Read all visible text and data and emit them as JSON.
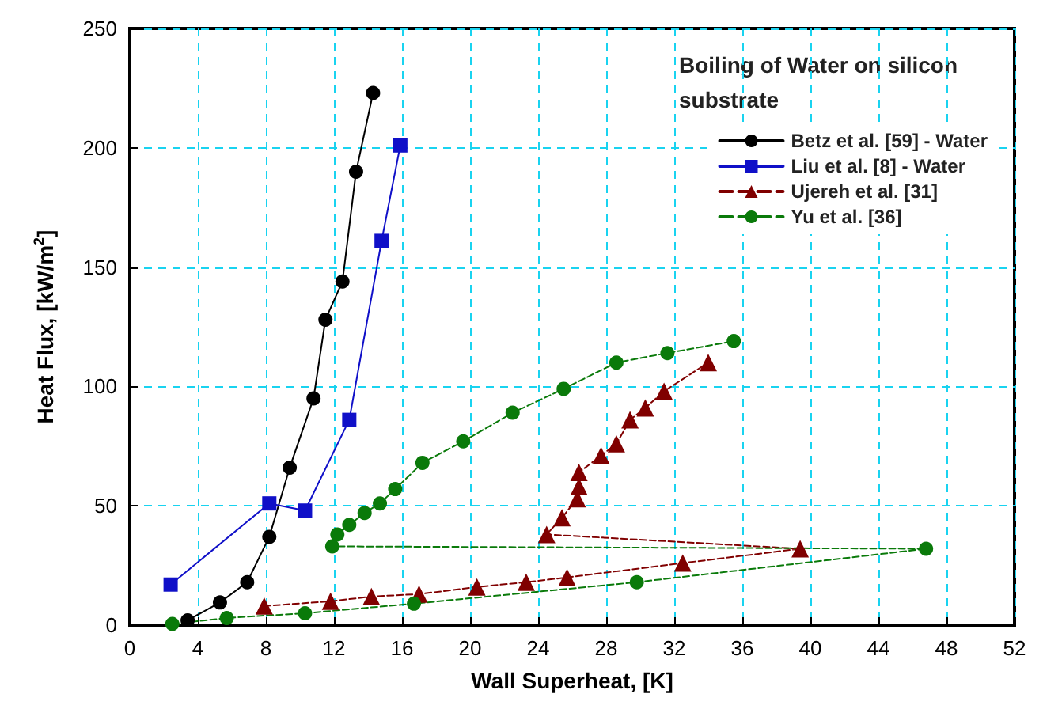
{
  "chart_data": {
    "type": "line",
    "xlabel": "Wall Superheat, [K]",
    "ylabel": "Heat Flux, [kW/m$^{2}$]",
    "annotations": [
      "Boiling of Water on silicon substrate"
    ],
    "xlim": [
      0,
      52
    ],
    "xticks": [
      0,
      4,
      8,
      12,
      16,
      20,
      24,
      28,
      32,
      36,
      40,
      44,
      48,
      52
    ],
    "ylim": [
      0,
      250
    ],
    "yticks": [
      0,
      50,
      100,
      150,
      200,
      250
    ],
    "grid": true,
    "legend": "top right",
    "series": [
      {
        "name": "Betz et al. [59] - Water",
        "color": "#000000",
        "marker": "circle",
        "line_style": "solid",
        "x": [
          3.4,
          5.3,
          6.9,
          8.2,
          9.4,
          10.8,
          11.5,
          12.5,
          13.3,
          14.3
        ],
        "values": [
          2,
          9.5,
          18,
          37,
          66,
          95,
          128,
          144,
          190,
          223
        ]
      },
      {
        "name": "Liu et al. [8] - Water",
        "color": "#1010c8",
        "marker": "square",
        "line_style": "solid",
        "x": [
          2.4,
          8.2,
          10.3,
          12.9,
          14.8,
          15.9
        ],
        "values": [
          17,
          51,
          48,
          86,
          161,
          201
        ]
      },
      {
        "name": "Ujereh et al. [31]",
        "color": "#800000",
        "marker": "triangle",
        "line_style": "dashed",
        "x": [
          7.9,
          11.8,
          14.2,
          17,
          20.4,
          23.3,
          25.7,
          32.5,
          39.4,
          24.5,
          25.4,
          26.3,
          26.4,
          26.4,
          27.7,
          28.6,
          29.4,
          30.3,
          31.4,
          34
        ],
        "values": [
          8,
          10,
          12,
          13,
          16,
          18,
          20,
          26,
          32,
          38,
          45,
          53,
          58,
          64,
          71,
          76,
          86,
          91,
          98,
          110
        ]
      },
      {
        "name": "Yu et al. [36]",
        "color": "#0a7a0a",
        "marker": "circle",
        "line_style": "dashed",
        "x": [
          2.5,
          5.7,
          10.3,
          16.7,
          29.8,
          46.8,
          11.9,
          12.2,
          12.9,
          13.8,
          14.7,
          15.6,
          17.2,
          19.6,
          22.5,
          25.5,
          28.6,
          31.6,
          35.5
        ],
        "values": [
          0.5,
          3,
          5,
          9,
          18,
          32,
          33,
          38,
          42,
          47,
          51,
          57,
          68,
          77,
          89,
          99,
          110,
          114,
          119
        ]
      }
    ]
  }
}
